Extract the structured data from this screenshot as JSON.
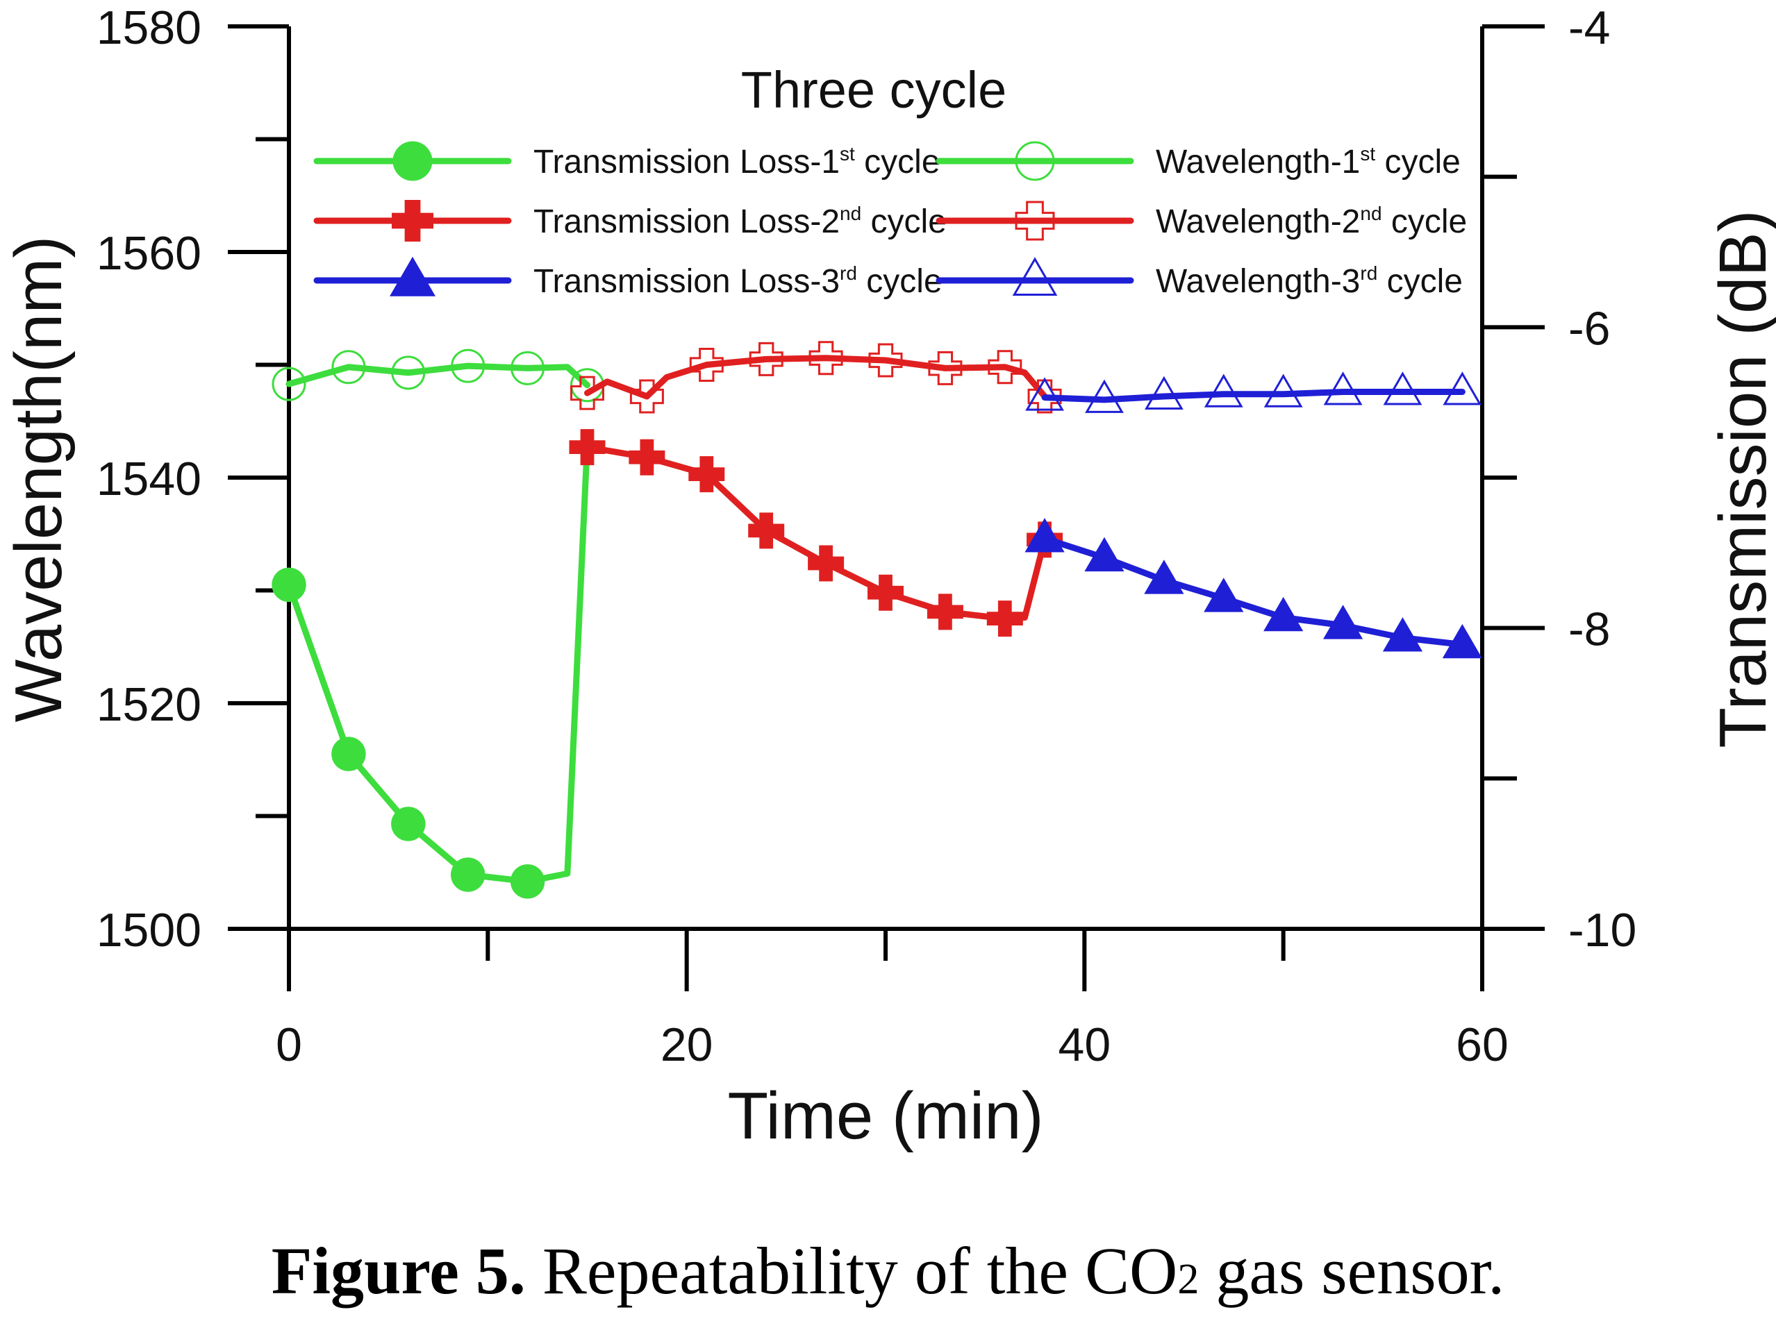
{
  "chart_data": {
    "type": "line",
    "title": "Three cycle",
    "xlabel": "Time (min)",
    "ylabel_left": "Wavelength(nm)",
    "ylabel_right": "Transmission (dB)",
    "xlim": [
      0,
      60
    ],
    "ylim_left": [
      1500,
      1580
    ],
    "ylim_right": [
      -10,
      -4
    ],
    "xticks": [
      "0",
      "20",
      "40",
      "60"
    ],
    "yticks_left": [
      "1500",
      "1520",
      "1540",
      "1560",
      "1580"
    ],
    "yticks_right": [
      "-10",
      "-8",
      "-6",
      "-4"
    ],
    "grid": false,
    "legend_position": "top-center",
    "series": [
      {
        "name": "Transmission Loss-1st cycle",
        "label_base": "Transmission Loss-1",
        "label_sup": "st",
        "label_tail": " cycle",
        "axis": "left",
        "color": "#3ddd3d",
        "marker": "filled-circle",
        "x": [
          0,
          3,
          6,
          9,
          12,
          14,
          15
        ],
        "y": [
          1530.5,
          1515.5,
          1509.3,
          1504.8,
          1504.2,
          1504.9,
          1543
        ]
      },
      {
        "name": "Transmission Loss-2nd cycle",
        "label_base": "Transmission Loss-2",
        "label_sup": "nd",
        "label_tail": " cycle",
        "axis": "left",
        "color": "#e02020",
        "marker": "plus",
        "x": [
          15,
          18,
          21,
          24,
          27,
          30,
          33,
          36,
          37,
          38
        ],
        "y": [
          1542.7,
          1541.8,
          1540.3,
          1535.3,
          1532.4,
          1529.8,
          1528.1,
          1527.5,
          1527.6,
          1534.5
        ]
      },
      {
        "name": "Transmission Loss-3rd cycle",
        "label_base": "Transmission Loss-3",
        "label_sup": "rd",
        "label_tail": " cycle",
        "axis": "left",
        "color": "#1f1fd6",
        "marker": "filled-triangle",
        "x": [
          38,
          41,
          44,
          47,
          50,
          53,
          56,
          59
        ],
        "y": [
          1534.6,
          1532.9,
          1530.9,
          1529.3,
          1527.6,
          1526.9,
          1525.8,
          1525.2
        ]
      },
      {
        "name": "Wavelength-1st cycle",
        "label_base": "Wavelength-1",
        "label_sup": "st",
        "label_tail": " cycle",
        "axis": "left",
        "color": "#3ddd3d",
        "marker": "open-circle",
        "x": [
          0,
          3,
          6,
          9,
          12,
          14,
          15
        ],
        "y": [
          1548.3,
          1549.8,
          1549.3,
          1549.9,
          1549.7,
          1549.8,
          1548.2
        ]
      },
      {
        "name": "Wavelength-2nd cycle",
        "label_base": "Wavelength-2",
        "label_sup": "nd",
        "label_tail": " cycle",
        "axis": "left",
        "color": "#e02020",
        "marker": "open-plus",
        "x": [
          15,
          16,
          18,
          19,
          21,
          24,
          27,
          30,
          33,
          36,
          37,
          38
        ],
        "y": [
          1547.5,
          1548.5,
          1547.2,
          1548.9,
          1550.0,
          1550.5,
          1550.6,
          1550.4,
          1549.7,
          1549.8,
          1549.3,
          1547.2
        ]
      },
      {
        "name": "Wavelength-3rd cycle",
        "label_base": "Wavelength-3",
        "label_sup": "rd",
        "label_tail": " cycle",
        "axis": "left",
        "color": "#1f1fd6",
        "marker": "open-triangle",
        "x": [
          38,
          41,
          44,
          47,
          50,
          53,
          56,
          59
        ],
        "y": [
          1547.1,
          1546.9,
          1547.2,
          1547.4,
          1547.4,
          1547.6,
          1547.6,
          1547.6
        ]
      }
    ]
  },
  "caption": {
    "label": "Figure 5.",
    "text_before": " Repeatability of the CO",
    "subscript": "2",
    "text_after": " gas sensor."
  }
}
